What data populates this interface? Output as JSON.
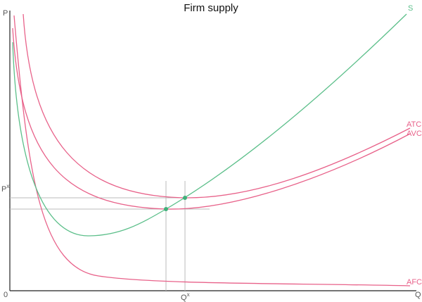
{
  "title": "Firm supply",
  "axes": {
    "y_label": "P",
    "x_label": "Q",
    "origin": "0",
    "price_mark": {
      "base": "P",
      "sup": "x"
    },
    "quantity_mark": {
      "base": "Q",
      "sup": "x"
    }
  },
  "curves": [
    {
      "label": "S"
    },
    {
      "label": "ATC"
    },
    {
      "label": "AVC"
    },
    {
      "label": "AFC"
    }
  ]
}
